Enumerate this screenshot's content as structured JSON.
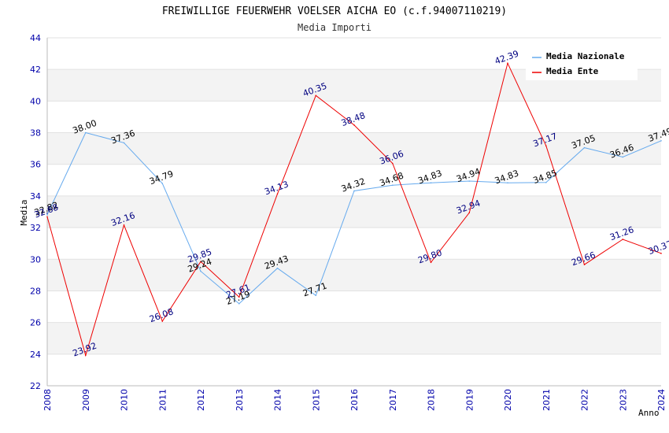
{
  "chart_data": {
    "type": "line",
    "title": "FREIWILLIGE FEUERWEHR VOELSER AICHA EO (c.f.94007110219)",
    "subtitle": "Media Importi",
    "xlabel": "Anno",
    "ylabel": "Media",
    "ylim": [
      22,
      44
    ],
    "yticks": [
      "22",
      "24",
      "26",
      "28",
      "30",
      "32",
      "34",
      "36",
      "38",
      "40",
      "42",
      "44"
    ],
    "categories": [
      "2008",
      "2009",
      "2010",
      "2011",
      "2012",
      "2013",
      "2014",
      "2015",
      "2016",
      "2017",
      "2018",
      "2019",
      "2020",
      "2021",
      "2022",
      "2023",
      "2024"
    ],
    "series": [
      {
        "name": "Media Nazionale",
        "color": "#66aaee",
        "values": [
          32.82,
          38.0,
          37.36,
          34.79,
          29.24,
          27.19,
          29.43,
          27.71,
          34.32,
          34.68,
          34.83,
          34.94,
          34.83,
          34.85,
          37.05,
          36.46,
          37.49
        ],
        "labels": [
          "32.82",
          "38.00",
          "37.36",
          "34.79",
          "29.24",
          "27.19",
          "29.43",
          "27.71",
          "34.32",
          "34.68",
          "34.83",
          "34.94",
          "34.83",
          "34.85",
          "37.05",
          "36.46",
          "37.49"
        ]
      },
      {
        "name": "Media Ente",
        "color": "#ee0000",
        "values": [
          32.68,
          23.92,
          32.16,
          26.08,
          29.85,
          27.61,
          34.13,
          40.35,
          38.48,
          36.06,
          29.8,
          32.94,
          42.39,
          37.17,
          29.66,
          31.26,
          30.37
        ],
        "labels": [
          "32.68",
          "23.92",
          "32.16",
          "26.08",
          "29.85",
          "27.61",
          "34.13",
          "40.35",
          "38.48",
          "36.06",
          "29.80",
          "32.94",
          "42.39",
          "37.17",
          "29.66",
          "31.26",
          "30.37"
        ]
      }
    ],
    "grid": true,
    "legend": "top-right"
  }
}
